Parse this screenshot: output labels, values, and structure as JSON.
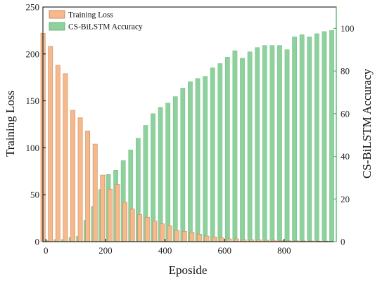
{
  "chart_data": {
    "type": "bar",
    "x_label": "Eposide",
    "x_ticks": [
      0,
      200,
      400,
      600,
      800
    ],
    "xlim": [
      -10,
      975
    ],
    "left_axis": {
      "label": "Training Loss",
      "ylim": [
        0,
        250
      ],
      "ticks": [
        0,
        50,
        100,
        150,
        200,
        250
      ],
      "color": "#000000"
    },
    "right_axis": {
      "label": "CS-BiLSTM Accuracy",
      "ylim": [
        0,
        110
      ],
      "ticks": [
        0,
        20,
        40,
        60,
        80,
        100
      ],
      "color": "#2e7d32"
    },
    "legend_position": "top-left",
    "series": [
      {
        "name": "Training Loss",
        "axis": "left",
        "color": "#f5b98c",
        "x": [
          0,
          25,
          50,
          75,
          100,
          125,
          150,
          175,
          200,
          225,
          250,
          275,
          300,
          325,
          350,
          375,
          400,
          425,
          450,
          475,
          500,
          525,
          550,
          575,
          600,
          625,
          650,
          675,
          700,
          725,
          750,
          775,
          800,
          825,
          850,
          875,
          900,
          925,
          950
        ],
        "values": [
          222,
          208,
          188,
          179,
          140,
          132,
          118,
          104,
          71,
          56,
          61,
          42,
          35,
          29,
          26,
          22,
          19,
          17,
          12,
          11,
          10,
          8,
          6,
          5,
          4,
          3,
          3,
          2,
          2,
          2,
          1.5,
          1.5,
          1,
          1,
          1,
          0.8,
          0.8,
          0.6,
          0.6
        ]
      },
      {
        "name": "CS-BiLSTM Accuracy",
        "axis": "right",
        "color": "#8fd19e",
        "x": [
          0,
          25,
          50,
          75,
          100,
          125,
          150,
          175,
          200,
          225,
          250,
          275,
          300,
          325,
          350,
          375,
          400,
          425,
          450,
          475,
          500,
          525,
          550,
          575,
          600,
          625,
          650,
          675,
          700,
          725,
          750,
          775,
          800,
          825,
          850,
          875,
          900,
          925,
          950
        ],
        "values": [
          0.5,
          1,
          1,
          2,
          2.5,
          10,
          16.5,
          24.5,
          31.5,
          33.5,
          38,
          43,
          48.5,
          54.5,
          60,
          63,
          65,
          68,
          72,
          75,
          76.5,
          77.5,
          81.5,
          83.5,
          86.5,
          89.5,
          86,
          89,
          91,
          92,
          92,
          92,
          90,
          96,
          97,
          96,
          97.5,
          98.5,
          99
        ]
      }
    ]
  }
}
